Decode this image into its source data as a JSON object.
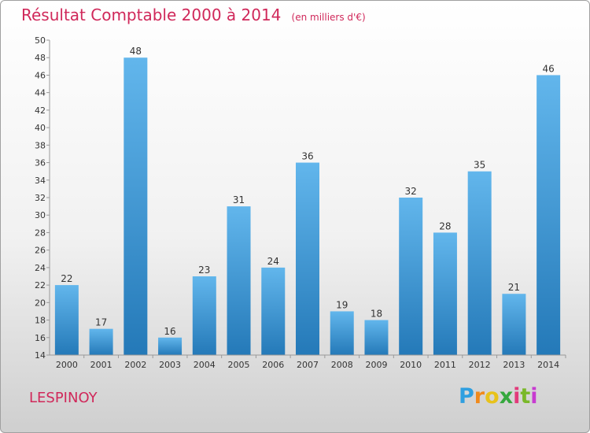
{
  "title": "Résultat Comptable 2000 à 2014",
  "unit": "(en milliers d'€)",
  "commune": "LESPINOY",
  "logo": {
    "letters": [
      "P",
      "r",
      "o",
      "x",
      "i",
      "t",
      "i"
    ],
    "colors": [
      "#2f9fe0",
      "#f08a1c",
      "#e8c21b",
      "#35a83e",
      "#e23a7a",
      "#7ab829",
      "#c73bd0"
    ]
  },
  "colors": {
    "bar_light": "#62b6ec",
    "bar_dark": "#2479b8",
    "title": "#d0285a"
  },
  "chart_data": {
    "type": "bar",
    "categories": [
      "2000",
      "2001",
      "2002",
      "2003",
      "2004",
      "2005",
      "2006",
      "2007",
      "2008",
      "2009",
      "2010",
      "2011",
      "2012",
      "2013",
      "2014"
    ],
    "values": [
      22,
      17,
      48,
      16,
      23,
      31,
      24,
      36,
      19,
      18,
      32,
      28,
      35,
      21,
      46
    ],
    "ylim": [
      14,
      50
    ],
    "yticks": [
      14,
      16,
      18,
      20,
      22,
      24,
      26,
      28,
      30,
      32,
      34,
      36,
      38,
      40,
      42,
      44,
      46,
      48,
      50
    ],
    "grid": false,
    "data_labels": true
  }
}
